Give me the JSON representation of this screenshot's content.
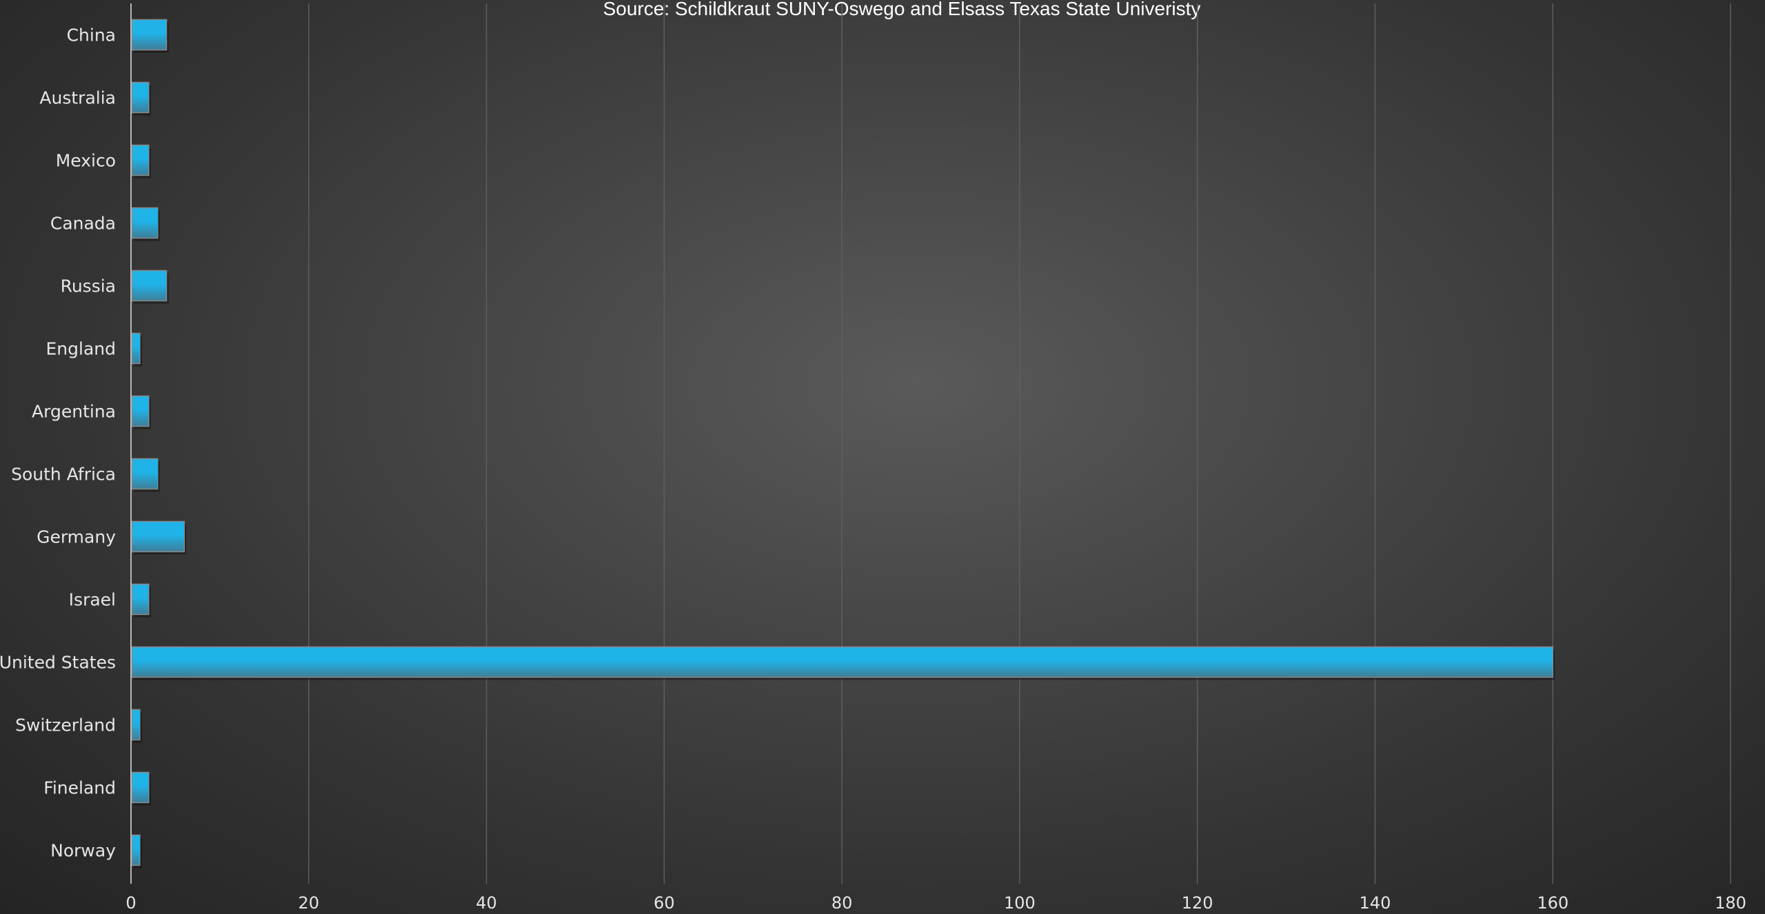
{
  "chart_data": {
    "type": "bar",
    "orientation": "horizontal",
    "title": "Source: Schildkraut SUNY-Oswego and Elsass Texas State Univeristy",
    "categories": [
      "China",
      "Australia",
      "Mexico",
      "Canada",
      "Russia",
      "England",
      "Argentina",
      "South Africa",
      "Germany",
      "Israel",
      "United States",
      "Switzerland",
      "Fineland",
      "Norway"
    ],
    "values": [
      4,
      2,
      2,
      3,
      4,
      1,
      2,
      3,
      6,
      2,
      160,
      1,
      2,
      1
    ],
    "xlim": [
      0,
      180
    ],
    "xticks": [
      0,
      20,
      40,
      60,
      80,
      100,
      120,
      140,
      160,
      180
    ],
    "xlabel": "",
    "ylabel": "",
    "grid": "vertical",
    "legend": "none",
    "colors": {
      "bar_top": "#1fb3e8",
      "bar_bottom": "#3f7d96",
      "bar_edge": "#8a8a8a",
      "grid": "#5e5e5e",
      "axis": "#b8b8b8",
      "text": "#e6e6e6"
    }
  }
}
